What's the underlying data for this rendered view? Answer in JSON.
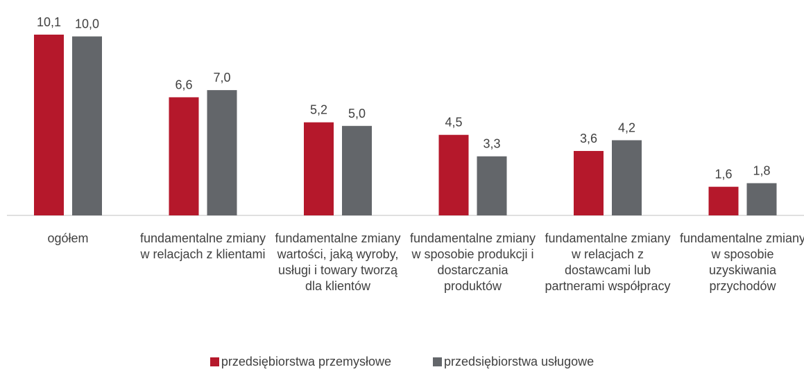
{
  "chart_data": {
    "type": "bar",
    "categories": [
      "ogółem",
      "fundamentalne zmiany w relacjach z klientami",
      "fundamentalne zmiany wartości, jaką wyroby, usługi i towary tworzą dla klientów",
      "fundamentalne zmiany w sposobie produkcji i dostarczania produktów",
      "fundamentalne zmiany w relacjach z dostawcami lub partnerami współpracy",
      "fundamentalne zmiany w sposobie uzyskiwania przychodów"
    ],
    "series": [
      {
        "name": "przedsiębiorstwa przemysłowe",
        "color": "#b5182b",
        "values": [
          10.1,
          6.6,
          5.2,
          4.5,
          3.6,
          1.6
        ],
        "value_labels": [
          "10,1",
          "6,6",
          "5,2",
          "4,5",
          "3,6",
          "1,6"
        ]
      },
      {
        "name": "przedsiębiorstwa usługowe",
        "color": "#63666a",
        "values": [
          10.0,
          7.0,
          5.0,
          3.3,
          4.2,
          1.8
        ],
        "value_labels": [
          "10,0",
          "7,0",
          "5,0",
          "3,3",
          "4,2",
          "1,8"
        ]
      }
    ],
    "legend": "bottom"
  }
}
